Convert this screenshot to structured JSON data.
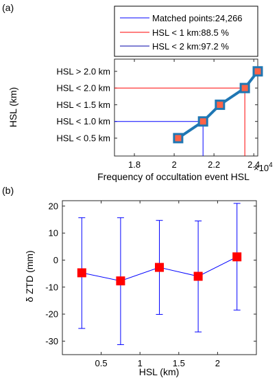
{
  "panels": {
    "a": {
      "label": "(a)"
    },
    "b": {
      "label": "(b)"
    }
  },
  "chart_data": [
    {
      "type": "line",
      "panel": "a",
      "xlabel": "Frequency of occultation event HSL",
      "ylabel": "HSL (km)",
      "x_exponent_label": "×10",
      "x_exponent_power": "4",
      "xlim": [
        1.7,
        2.42
      ],
      "xticks": [
        1.8,
        2.0,
        2.2,
        2.4
      ],
      "xtick_labels": [
        "1.8",
        "2",
        "2.2",
        "2.4"
      ],
      "categories": [
        "HSL < 0.5 km",
        "HSL < 1.0 km",
        "HSL < 1.5 km",
        "HSL < 2.0 km",
        "HSL > 2.0 km"
      ],
      "series": [
        {
          "x": [
            2.02,
            2.145,
            2.23,
            2.355,
            2.42
          ],
          "line_color": "#1f77b4",
          "marker_color": "#ff6347"
        }
      ],
      "legend": {
        "placement": "top",
        "entries": [
          {
            "label": "Matched points:24,266",
            "color": "#0000ff"
          },
          {
            "label": "HSL < 1 km:88.5 %",
            "color": "#ff0000"
          },
          {
            "label": "HSL < 2 km:97.2 %",
            "color": "#0000aa"
          }
        ]
      },
      "reference_lines": [
        {
          "color": "#0000ff",
          "x": 2.145,
          "category": "HSL < 1.0 km"
        },
        {
          "color": "#ff0000",
          "x": 2.355,
          "category": "HSL < 2.0 km"
        }
      ]
    },
    {
      "type": "scatter",
      "panel": "b",
      "xlabel": "HSL (km)",
      "ylabel": "δ ZTD (mm)",
      "xlim": [
        0,
        2.5
      ],
      "ylim": [
        -35,
        22
      ],
      "xticks": [
        0.5,
        1.0,
        1.5,
        2.0
      ],
      "xtick_labels": [
        "0.5",
        "1",
        "1.5",
        "2"
      ],
      "yticks": [
        20,
        10,
        0,
        -10,
        -20,
        -30
      ],
      "ytick_labels": [
        "20",
        "10",
        "0",
        "-10",
        "-20",
        "-30"
      ],
      "series": [
        {
          "x": [
            0.25,
            0.75,
            1.25,
            1.75,
            2.25
          ],
          "y": [
            -4.7,
            -7.7,
            -2.7,
            -6.0,
            1.2
          ],
          "upper": [
            15.7,
            15.7,
            14.7,
            14.5,
            21.0
          ],
          "lower": [
            -25.3,
            -31.3,
            -20.1,
            -26.6,
            -18.5
          ],
          "line_color": "#0000ff",
          "marker_color": "#ff0000"
        }
      ]
    }
  ]
}
